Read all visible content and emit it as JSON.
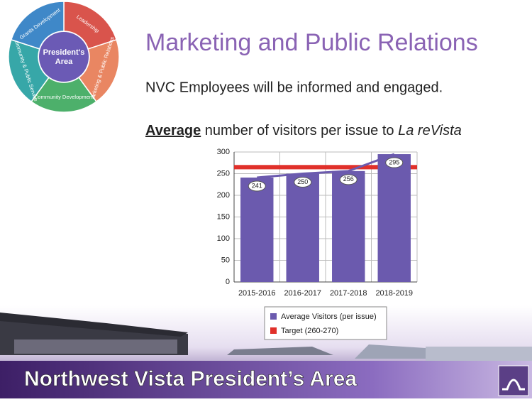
{
  "title": "Marketing and Public Relations",
  "subtitle": "NVC Employees will be informed and engaged.",
  "caption": {
    "emphasis": "Average",
    "text": "number of visitors per issue to",
    "publication": "La reVista"
  },
  "diagram": {
    "center": [
      "President's",
      "Area"
    ],
    "segments": [
      {
        "label": "Leadership",
        "color": "#d9544c"
      },
      {
        "label": "Marketing & Public Relations",
        "color": "#e98662"
      },
      {
        "label": "Community Development",
        "color": "#4db06b"
      },
      {
        "label": "Community & Public Service",
        "color": "#37a7a8"
      },
      {
        "label": "Grants Development",
        "color": "#3f88c8"
      }
    ]
  },
  "footer": "Northwest Vista President’s Area",
  "chart_data": {
    "type": "bar",
    "categories": [
      "2015-2016",
      "2016-2017",
      "2017-2018",
      "2018-2019"
    ],
    "series": [
      {
        "name": "Average Visitors (per issue)",
        "color": "#6b5aae",
        "values": [
          241,
          250,
          256,
          295
        ]
      }
    ],
    "target": {
      "name": "Target (260-270)",
      "color": "#e0302a",
      "range": [
        260,
        270
      ]
    },
    "ylim": [
      0,
      300
    ],
    "yticks": [
      0,
      50,
      100,
      150,
      200,
      250,
      300
    ],
    "grid": true
  }
}
